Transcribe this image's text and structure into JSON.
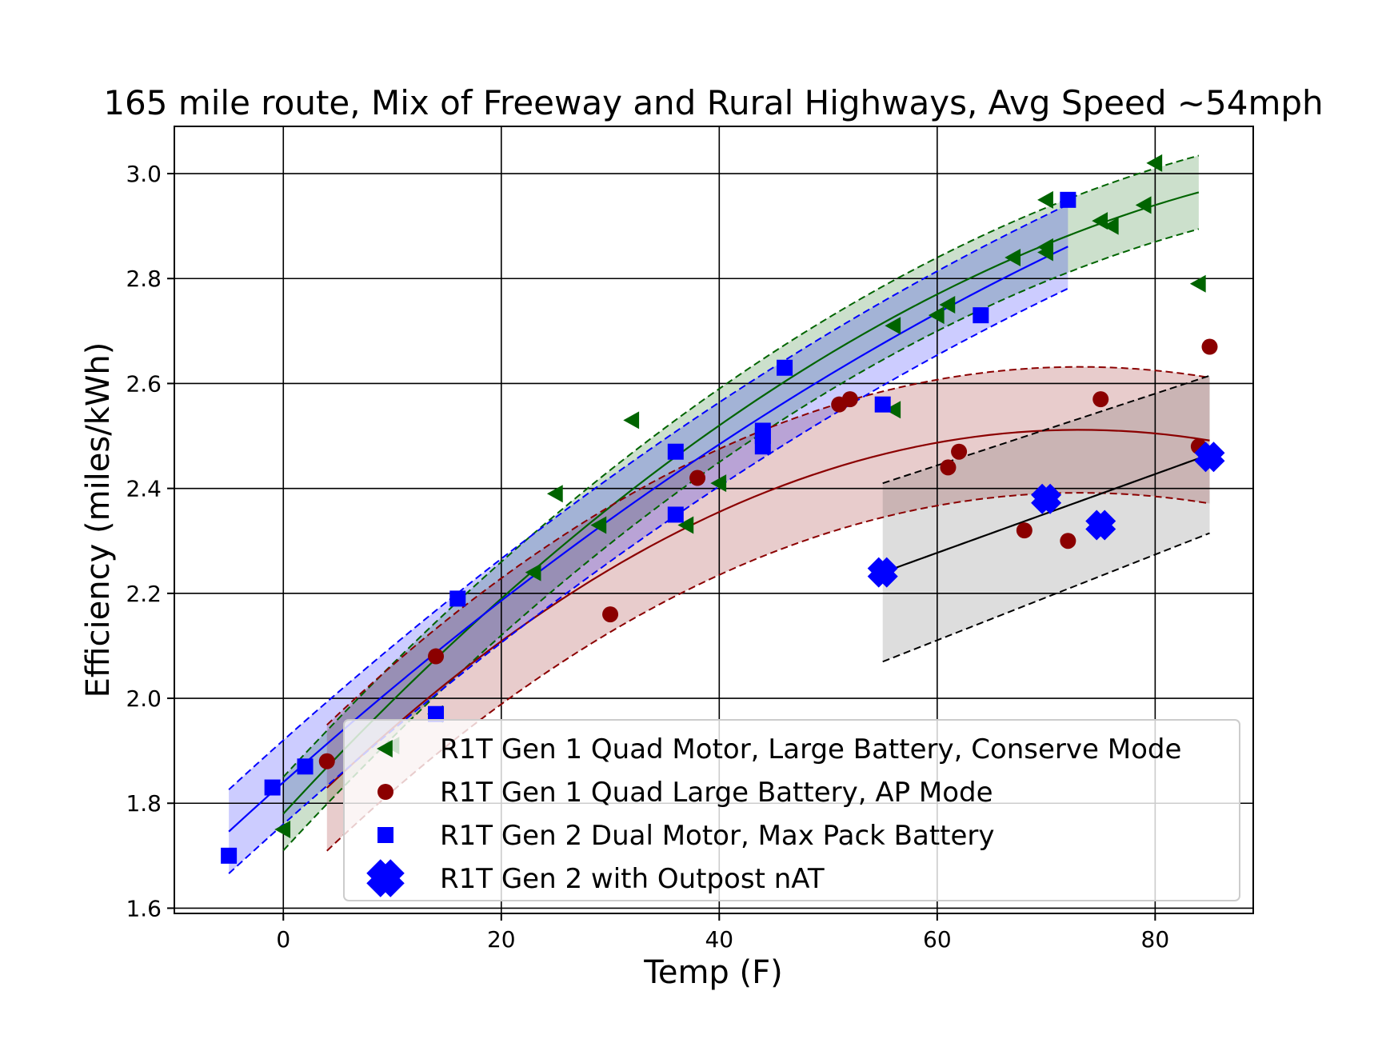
{
  "chart_data": {
    "type": "scatter",
    "title": "165 mile route, Mix of Freeway and Rural Highways, Avg Speed ~54mph",
    "xlabel": "Temp (F)",
    "ylabel": "Efficiency (miles/kWh)",
    "xlim": [
      -10,
      89
    ],
    "ylim": [
      1.59,
      3.09
    ],
    "xticks": [
      0,
      20,
      40,
      60,
      80
    ],
    "yticks": [
      1.6,
      1.8,
      2.0,
      2.2,
      2.4,
      2.6,
      2.8,
      3.0
    ],
    "xtick_labels": [
      "0",
      "20",
      "40",
      "60",
      "80"
    ],
    "ytick_labels": [
      "1.6",
      "1.8",
      "2.0",
      "2.2",
      "2.4",
      "2.6",
      "2.8",
      "3.0"
    ],
    "grid": true,
    "legend_position": "lower-right",
    "series": [
      {
        "name": "R1T Gen 1 Quad Motor, Large Battery, Conserve Mode",
        "marker": "triangle-left",
        "color": "#006400",
        "points": [
          [
            0,
            1.75
          ],
          [
            10,
            1.91
          ],
          [
            14,
            1.97
          ],
          [
            23,
            2.24
          ],
          [
            25,
            2.39
          ],
          [
            29,
            2.33
          ],
          [
            32,
            2.53
          ],
          [
            37,
            2.33
          ],
          [
            40,
            2.41
          ],
          [
            56,
            2.55
          ],
          [
            56,
            2.71
          ],
          [
            60,
            2.73
          ],
          [
            61,
            2.75
          ],
          [
            67,
            2.84
          ],
          [
            70,
            2.85
          ],
          [
            70,
            2.86
          ],
          [
            70,
            2.95
          ],
          [
            75,
            2.91
          ],
          [
            76,
            2.9
          ],
          [
            79,
            2.94
          ],
          [
            80,
            3.02
          ],
          [
            84,
            2.79
          ]
        ],
        "fit": {
          "kind": "quadratic",
          "x_range": [
            0,
            84
          ],
          "coef": [
            1.78,
            0.0225,
            -0.0001
          ],
          "band": 0.07
        }
      },
      {
        "name": "R1T Gen 1 Quad Large Battery, AP Mode",
        "marker": "circle",
        "color": "#8b0000",
        "points": [
          [
            4,
            1.88
          ],
          [
            14,
            2.08
          ],
          [
            30,
            2.16
          ],
          [
            38,
            2.42
          ],
          [
            51,
            2.56
          ],
          [
            52,
            2.57
          ],
          [
            61,
            2.44
          ],
          [
            62,
            2.47
          ],
          [
            68,
            2.32
          ],
          [
            72,
            2.3
          ],
          [
            75,
            2.57
          ],
          [
            84,
            2.48
          ],
          [
            85,
            2.67
          ]
        ],
        "fit": {
          "kind": "quadratic",
          "x_range": [
            4,
            85
          ],
          "coef": [
            1.748,
            0.0209,
            -0.000143
          ],
          "band": 0.12
        }
      },
      {
        "name": "R1T Gen 2 Dual Motor, Max Pack Battery",
        "marker": "square",
        "color": "#0000ff",
        "points": [
          [
            -5,
            1.7
          ],
          [
            -1,
            1.83
          ],
          [
            2,
            1.87
          ],
          [
            14,
            1.97
          ],
          [
            16,
            2.19
          ],
          [
            36,
            2.35
          ],
          [
            36,
            2.47
          ],
          [
            44,
            2.48
          ],
          [
            44,
            2.5
          ],
          [
            44,
            2.51
          ],
          [
            46,
            2.63
          ],
          [
            55,
            2.56
          ],
          [
            64,
            2.73
          ],
          [
            72,
            2.95
          ]
        ],
        "fit": {
          "kind": "quadratic",
          "x_range": [
            -5,
            72
          ],
          "coef": [
            1.84,
            0.0185,
            -6e-05
          ],
          "band": 0.08
        }
      },
      {
        "name": "R1T Gen 2 with Outpost nAT",
        "marker": "x",
        "color": "#0000ff",
        "points": [
          [
            55,
            2.24
          ],
          [
            70,
            2.38
          ],
          [
            75,
            2.33
          ],
          [
            85,
            2.46
          ]
        ],
        "fit": {
          "kind": "linear",
          "x_range": [
            55,
            85
          ],
          "coef": [
            1.8273,
            0.0075
          ],
          "band_left": 0.17,
          "band_right": 0.15
        }
      }
    ]
  }
}
